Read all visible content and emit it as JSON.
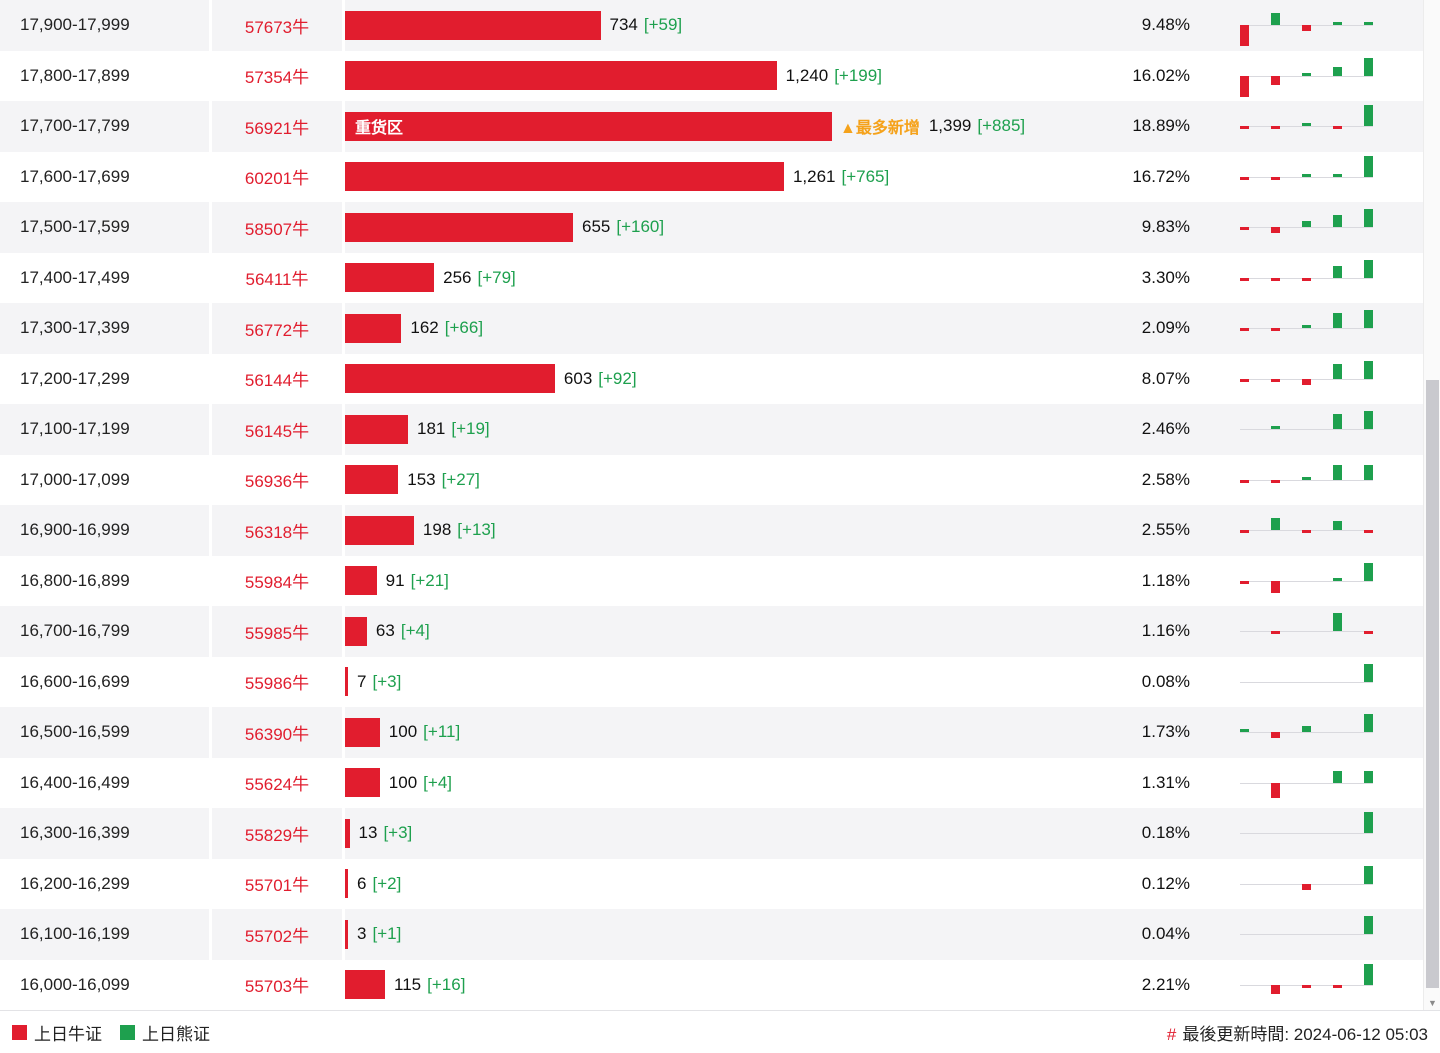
{
  "colors": {
    "red": "#e11d2e",
    "green": "#1ea04e",
    "orange": "#f5a21b",
    "alt_row": "#f4f4f6"
  },
  "legend": {
    "bull_label": "上日牛证",
    "bear_label": "上日熊证",
    "hash": "#",
    "updated_text": "最後更新時間: 2024-06-12 05:03"
  },
  "highlight": {
    "bar_text": "重货区",
    "badge": "▲最多新增"
  },
  "rows": [
    {
      "range": "17,900-17,999",
      "code": "57673牛",
      "value": 734,
      "num": "734",
      "delta": "[+59]",
      "pct": "9.48%",
      "spark": [
        -7,
        4,
        -2,
        1,
        1
      ]
    },
    {
      "range": "17,800-17,899",
      "code": "57354牛",
      "value": 1240,
      "num": "1,240",
      "delta": "[+199]",
      "pct": "16.02%",
      "spark": [
        -7,
        -3,
        1,
        3,
        6
      ]
    },
    {
      "range": "17,700-17,799",
      "code": "56921牛",
      "value": 1399,
      "num": "1,399",
      "delta": "[+885]",
      "pct": "18.89%",
      "spark": [
        -1,
        -1,
        1,
        -1,
        7
      ],
      "bar_text": "重货区",
      "badge": "▲最多新增"
    },
    {
      "range": "17,600-17,699",
      "code": "60201牛",
      "value": 1261,
      "num": "1,261",
      "delta": "[+765]",
      "pct": "16.72%",
      "spark": [
        -1,
        -1,
        1,
        1,
        7
      ]
    },
    {
      "range": "17,500-17,599",
      "code": "58507牛",
      "value": 655,
      "num": "655",
      "delta": "[+160]",
      "pct": "9.83%",
      "spark": [
        -1,
        -2,
        2,
        4,
        6
      ]
    },
    {
      "range": "17,400-17,499",
      "code": "56411牛",
      "value": 256,
      "num": "256",
      "delta": "[+79]",
      "pct": "3.30%",
      "spark": [
        -1,
        -1,
        -1,
        4,
        6
      ]
    },
    {
      "range": "17,300-17,399",
      "code": "56772牛",
      "value": 162,
      "num": "162",
      "delta": "[+66]",
      "pct": "2.09%",
      "spark": [
        -1,
        -1,
        1,
        5,
        6
      ]
    },
    {
      "range": "17,200-17,299",
      "code": "56144牛",
      "value": 603,
      "num": "603",
      "delta": "[+92]",
      "pct": "8.07%",
      "spark": [
        -1,
        -1,
        -2,
        5,
        6
      ]
    },
    {
      "range": "17,100-17,199",
      "code": "56145牛",
      "value": 181,
      "num": "181",
      "delta": "[+19]",
      "pct": "2.46%",
      "spark": [
        0,
        1,
        0,
        5,
        6
      ]
    },
    {
      "range": "17,000-17,099",
      "code": "56936牛",
      "value": 153,
      "num": "153",
      "delta": "[+27]",
      "pct": "2.58%",
      "spark": [
        -1,
        -1,
        1,
        5,
        5
      ]
    },
    {
      "range": "16,900-16,999",
      "code": "56318牛",
      "value": 198,
      "num": "198",
      "delta": "[+13]",
      "pct": "2.55%",
      "spark": [
        -1,
        4,
        -1,
        3,
        -1
      ]
    },
    {
      "range": "16,800-16,899",
      "code": "55984牛",
      "value": 91,
      "num": "91",
      "delta": "[+21]",
      "pct": "1.18%",
      "spark": [
        -1,
        -4,
        0,
        1,
        6
      ]
    },
    {
      "range": "16,700-16,799",
      "code": "55985牛",
      "value": 63,
      "num": "63",
      "delta": "[+4]",
      "pct": "1.16%",
      "spark": [
        0,
        -1,
        0,
        6,
        -1
      ]
    },
    {
      "range": "16,600-16,699",
      "code": "55986牛",
      "value": 7,
      "num": "7",
      "delta": "[+3]",
      "pct": "0.08%",
      "spark": [
        0,
        0,
        0,
        0,
        6
      ]
    },
    {
      "range": "16,500-16,599",
      "code": "56390牛",
      "value": 100,
      "num": "100",
      "delta": "[+11]",
      "pct": "1.73%",
      "spark": [
        1,
        -2,
        2,
        0,
        6
      ]
    },
    {
      "range": "16,400-16,499",
      "code": "55624牛",
      "value": 100,
      "num": "100",
      "delta": "[+4]",
      "pct": "1.31%",
      "spark": [
        0,
        -5,
        0,
        4,
        4
      ]
    },
    {
      "range": "16,300-16,399",
      "code": "55829牛",
      "value": 13,
      "num": "13",
      "delta": "[+3]",
      "pct": "0.18%",
      "spark": [
        0,
        0,
        0,
        0,
        7
      ]
    },
    {
      "range": "16,200-16,299",
      "code": "55701牛",
      "value": 6,
      "num": "6",
      "delta": "[+2]",
      "pct": "0.12%",
      "spark": [
        0,
        0,
        -2,
        0,
        6
      ]
    },
    {
      "range": "16,100-16,199",
      "code": "55702牛",
      "value": 3,
      "num": "3",
      "delta": "[+1]",
      "pct": "0.04%",
      "spark": [
        0,
        0,
        0,
        0,
        6
      ]
    },
    {
      "range": "16,000-16,099",
      "code": "55703牛",
      "value": 115,
      "num": "115",
      "delta": "[+16]",
      "pct": "2.21%",
      "spark": [
        0,
        -3,
        -1,
        -1,
        7
      ]
    }
  ],
  "chart_data": {
    "type": "bar",
    "orientation": "horizontal",
    "title": "",
    "categories": [
      "17,900-17,999",
      "17,800-17,899",
      "17,700-17,799",
      "17,600-17,699",
      "17,500-17,599",
      "17,400-17,499",
      "17,300-17,399",
      "17,200-17,299",
      "17,100-17,199",
      "17,000-17,099",
      "16,900-16,999",
      "16,800-16,899",
      "16,700-16,799",
      "16,600-16,699",
      "16,500-16,599",
      "16,400-16,499",
      "16,300-16,399",
      "16,200-16,299",
      "16,100-16,199",
      "16,000-16,099"
    ],
    "values": [
      734,
      1240,
      1399,
      1261,
      655,
      256,
      162,
      603,
      181,
      153,
      198,
      91,
      63,
      7,
      100,
      100,
      13,
      6,
      3,
      115
    ],
    "daily_change": [
      59,
      199,
      885,
      765,
      160,
      79,
      66,
      92,
      19,
      27,
      13,
      21,
      4,
      3,
      11,
      4,
      3,
      2,
      1,
      16
    ],
    "percentages": [
      9.48,
      16.02,
      18.89,
      16.72,
      9.83,
      3.3,
      2.09,
      8.07,
      2.46,
      2.58,
      2.55,
      1.18,
      1.16,
      0.08,
      1.73,
      1.31,
      0.18,
      0.12,
      0.04,
      2.21
    ],
    "codes": [
      "57673牛",
      "57354牛",
      "56921牛",
      "60201牛",
      "58507牛",
      "56411牛",
      "56772牛",
      "56144牛",
      "56145牛",
      "56936牛",
      "56318牛",
      "55984牛",
      "55985牛",
      "55986牛",
      "56390牛",
      "55624牛",
      "55829牛",
      "55701牛",
      "55702牛",
      "55703牛"
    ],
    "annotations": [
      {
        "category": "17,700-17,799",
        "labels": [
          "重货区",
          "▲最多新增"
        ]
      }
    ],
    "legend_entries": [
      "上日牛证",
      "上日熊证"
    ],
    "xlim": [
      0,
      1399
    ],
    "grid": false,
    "legend_position": "bottom-left"
  }
}
